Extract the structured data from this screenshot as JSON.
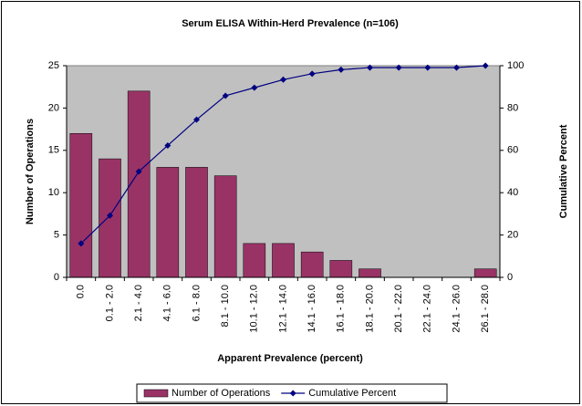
{
  "chart_data": {
    "type": "bar",
    "title": "Serum ELISA Within-Herd Prevalence (n=106)",
    "x_label": "Apparent Prevalence (percent)",
    "y_label": "Number of Operations",
    "y2_label": "Cumulative Percent",
    "categories": [
      "0.0",
      "0.1 - 2.0",
      "2.1 - 4.0",
      "4.1 - 6.0",
      "6.1 - 8.0",
      "8.1 - 10.0",
      "10.1 - 12.0",
      "12.1 - 14.0",
      "14.1 - 16.0",
      "16.1 - 18.0",
      "18.1 - 20.0",
      "20.1 - 22.0",
      "22.1 - 24.0",
      "24.1 - 26.0",
      "26.1 - 28.0"
    ],
    "series": [
      {
        "name": "Number of Operations",
        "type": "bar",
        "color": "#993366",
        "values": [
          17,
          14,
          22,
          13,
          13,
          12,
          4,
          4,
          3,
          2,
          1,
          0,
          0,
          0,
          1
        ]
      },
      {
        "name": "Cumulative Percent",
        "type": "line",
        "axis": "y2",
        "color": "#000080",
        "values": [
          16.0,
          29.2,
          50.0,
          62.3,
          74.5,
          85.8,
          89.6,
          93.4,
          96.2,
          98.1,
          99.1,
          99.1,
          99.1,
          99.1,
          100
        ]
      }
    ],
    "ylim": [
      0,
      25
    ],
    "yticks": [
      0,
      5,
      10,
      15,
      20,
      25
    ],
    "y2lim": [
      0,
      100
    ],
    "y2ticks": [
      0,
      20,
      40,
      60,
      80,
      100
    ],
    "grid": false,
    "plot_background": "#c0c0c0",
    "legend": "bottom"
  }
}
